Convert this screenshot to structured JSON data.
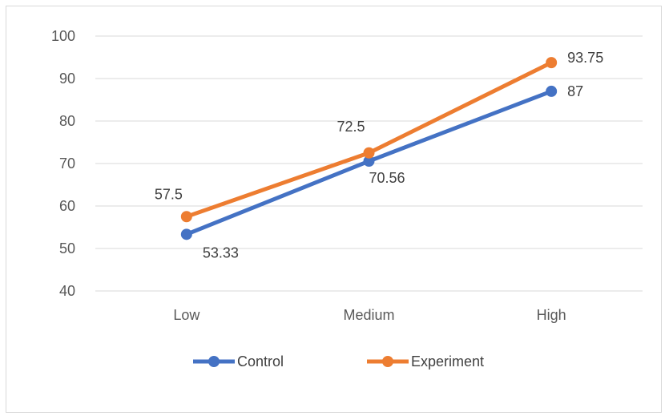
{
  "chart_data": {
    "type": "line",
    "categories": [
      "Low",
      "Medium",
      "High"
    ],
    "series": [
      {
        "name": "Control",
        "values": [
          53.33,
          70.56,
          87
        ],
        "labels": [
          "53.33",
          "70.56",
          "87"
        ],
        "color": "#4472c4"
      },
      {
        "name": "Experiment",
        "values": [
          57.5,
          72.5,
          93.75
        ],
        "labels": [
          "57.5",
          "72.5",
          "93.75"
        ],
        "color": "#ed7d31"
      }
    ],
    "ylim": [
      40,
      100
    ],
    "yticks": [
      "40",
      "50",
      "60",
      "70",
      "80",
      "90",
      "100"
    ],
    "grid": true,
    "legend": "bottom"
  }
}
